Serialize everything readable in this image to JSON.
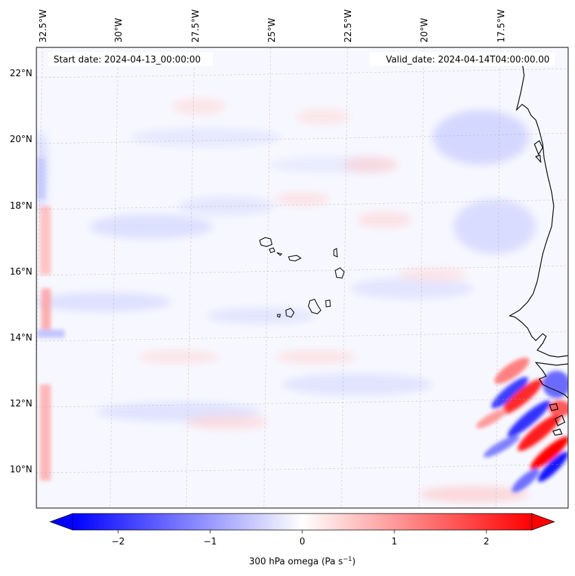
{
  "map": {
    "start_date_label": "Start date: 2024-04-13_00:00:00",
    "valid_date_label": "Valid_date: 2024-04-14T04:00:00.00",
    "lon_labels": [
      "32.5°W",
      "30°W",
      "27.5°W",
      "25°W",
      "22.5°W",
      "20°W",
      "17.5°W"
    ],
    "lat_labels": [
      "22°N",
      "20°N",
      "18°N",
      "16°N",
      "14°N",
      "12°N",
      "10°N"
    ],
    "extent": {
      "lon_min": -33.0,
      "lon_max": -15.5,
      "lat_min": 8.9,
      "lat_max": 22.8
    },
    "gridlines": true,
    "field_colors": {
      "negative": "#0000ff",
      "zero": "#ffffff",
      "positive": "#ff0000"
    }
  },
  "colorbar": {
    "label": "300 hPa omega (Pa s",
    "label_exponent": "−1",
    "label_suffix": ")",
    "tick_labels": [
      "−2",
      "−1",
      "0",
      "1",
      "2"
    ],
    "range": [
      -2.6,
      2.6
    ],
    "extend": "both"
  },
  "chart_data": {
    "type": "heatmap",
    "variable": "300 hPa omega",
    "units": "Pa s−1",
    "colormap": "bwr",
    "color_range": [
      -2.6,
      2.6
    ],
    "colorbar_ticks": [
      -2,
      -1,
      0,
      1,
      2
    ],
    "x_ticks_lon": [
      -32.5,
      -30,
      -27.5,
      -25,
      -22.5,
      -20,
      -17.5
    ],
    "y_ticks_lat": [
      22,
      20,
      18,
      16,
      14,
      12,
      10
    ]
  }
}
